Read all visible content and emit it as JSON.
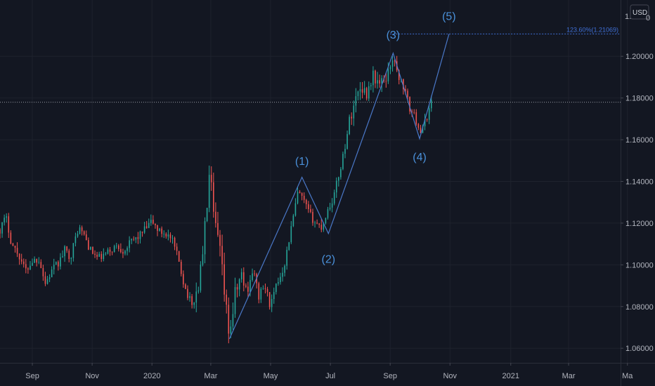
{
  "chart_data": {
    "type": "candlestick",
    "currency": "USD",
    "currency_suffix": "0",
    "y_ticks": [
      "1.06000",
      "1.08000",
      "1.10000",
      "1.12000",
      "1.14000",
      "1.16000",
      "1.18000",
      "1.20000"
    ],
    "y_ticks_num": [
      1.06,
      1.08,
      1.1,
      1.12,
      1.14,
      1.16,
      1.18,
      1.2
    ],
    "top_partial_tick": "1.",
    "ylim": [
      1.053,
      1.227
    ],
    "x_ticks": [
      "Sep",
      "Nov",
      "2020",
      "Mar",
      "May",
      "Jul",
      "Sep",
      "Nov",
      "2021",
      "Mar",
      "Ma"
    ],
    "x_ticks_num": [
      33,
      94,
      155,
      215,
      276,
      337,
      398,
      459,
      521,
      580,
      640
    ],
    "x_start": "2019-07-31",
    "xlim": [
      0,
      633
    ],
    "current_price": 1.178,
    "fib_label": "123.60%(1.21069)",
    "fib_level": 1.2107,
    "fib_x_range": [
      398,
      633
    ],
    "grid": true,
    "price_path": [
      [
        0,
        1.117
      ],
      [
        6,
        1.123
      ],
      [
        12,
        1.11
      ],
      [
        20,
        1.104
      ],
      [
        26,
        1.097
      ],
      [
        33,
        1.102
      ],
      [
        40,
        1.103
      ],
      [
        46,
        1.091
      ],
      [
        54,
        1.098
      ],
      [
        60,
        1.101
      ],
      [
        66,
        1.107
      ],
      [
        72,
        1.104
      ],
      [
        80,
        1.118
      ],
      [
        86,
        1.114
      ],
      [
        92,
        1.107
      ],
      [
        100,
        1.103
      ],
      [
        108,
        1.105
      ],
      [
        118,
        1.109
      ],
      [
        126,
        1.107
      ],
      [
        134,
        1.111
      ],
      [
        142,
        1.114
      ],
      [
        150,
        1.118
      ],
      [
        155,
        1.121
      ],
      [
        162,
        1.116
      ],
      [
        170,
        1.115
      ],
      [
        176,
        1.111
      ],
      [
        183,
        1.101
      ],
      [
        188,
        1.09
      ],
      [
        196,
        1.08
      ],
      [
        203,
        1.091
      ],
      [
        208,
        1.112
      ],
      [
        214,
        1.145
      ],
      [
        218,
        1.122
      ],
      [
        224,
        1.108
      ],
      [
        230,
        1.081
      ],
      [
        234,
        1.066
      ],
      [
        240,
        1.086
      ],
      [
        246,
        1.095
      ],
      [
        252,
        1.087
      ],
      [
        258,
        1.098
      ],
      [
        264,
        1.085
      ],
      [
        270,
        1.09
      ],
      [
        276,
        1.08
      ],
      [
        282,
        1.09
      ],
      [
        290,
        1.1
      ],
      [
        296,
        1.115
      ],
      [
        304,
        1.135
      ],
      [
        310,
        1.13
      ],
      [
        316,
        1.124
      ],
      [
        322,
        1.12
      ],
      [
        328,
        1.118
      ],
      [
        334,
        1.126
      ],
      [
        340,
        1.132
      ],
      [
        348,
        1.148
      ],
      [
        356,
        1.168
      ],
      [
        362,
        1.179
      ],
      [
        368,
        1.186
      ],
      [
        374,
        1.182
      ],
      [
        380,
        1.191
      ],
      [
        388,
        1.186
      ],
      [
        396,
        1.192
      ],
      [
        400,
        1.2
      ],
      [
        406,
        1.191
      ],
      [
        412,
        1.185
      ],
      [
        418,
        1.175
      ],
      [
        424,
        1.17
      ],
      [
        430,
        1.163
      ],
      [
        436,
        1.172
      ],
      [
        440,
        1.178
      ]
    ],
    "waves": [
      {
        "label": "(1)",
        "x": 308,
        "y": 1.142,
        "tx": 308,
        "ty": 1.15
      },
      {
        "label": "(2)",
        "x": 335,
        "y": 1.115,
        "tx": 335,
        "ty": 1.103
      },
      {
        "label": "(3)",
        "x": 401,
        "y": 1.2015,
        "tx": 401,
        "ty": 1.2105
      },
      {
        "label": "(4)",
        "x": 428,
        "y": 1.1605,
        "tx": 428,
        "ty": 1.152
      },
      {
        "label": "(5)",
        "x": 458,
        "y": 1.2107,
        "tx": 458,
        "ty": 1.2195
      }
    ],
    "wave_start": {
      "x": 234,
      "y": 1.0645
    }
  }
}
